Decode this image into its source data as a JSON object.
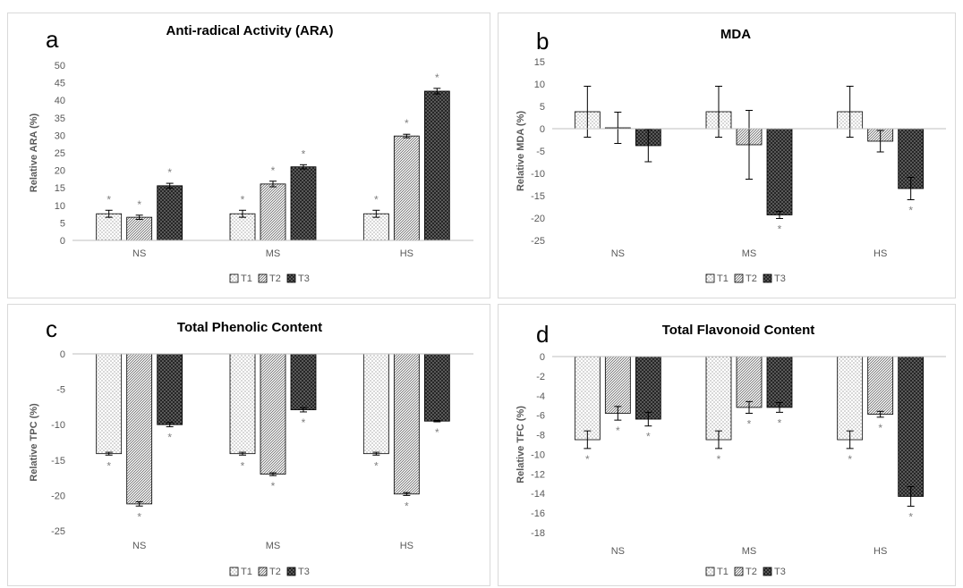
{
  "chart_data": [
    {
      "type": "bar",
      "panel_letter": "a",
      "title": "Anti-radical Activity (ARA)",
      "xlabel": "",
      "ylabel": "Relative ARA (%)",
      "categories": [
        "NS",
        "MS",
        "HS"
      ],
      "ylim": [
        0,
        50
      ],
      "yticks": [
        0,
        5,
        10,
        15,
        20,
        25,
        30,
        35,
        40,
        45,
        50
      ],
      "series": [
        {
          "name": "T1",
          "values": [
            7.6,
            7.6,
            7.6
          ],
          "errors": [
            1.0,
            1.0,
            1.0
          ],
          "sig": [
            "*",
            "*",
            "*"
          ]
        },
        {
          "name": "T2",
          "values": [
            6.6,
            16.1,
            29.8
          ],
          "errors": [
            0.6,
            0.8,
            0.5
          ],
          "sig": [
            "*",
            "*",
            "*"
          ]
        },
        {
          "name": "T3",
          "values": [
            15.6,
            21.0,
            42.6
          ],
          "errors": [
            0.7,
            0.6,
            0.8
          ],
          "sig": [
            "*",
            "*",
            "*"
          ]
        }
      ],
      "legend_position": "bottom",
      "grid": false
    },
    {
      "type": "bar",
      "panel_letter": "b",
      "title": "MDA",
      "xlabel": "",
      "ylabel": "Relative MDA (%)",
      "categories": [
        "NS",
        "MS",
        "HS"
      ],
      "ylim": [
        -25,
        15
      ],
      "yticks": [
        -25,
        -20,
        -15,
        -10,
        -5,
        0,
        5,
        10,
        15
      ],
      "series": [
        {
          "name": "T1",
          "values": [
            3.8,
            3.8,
            3.8
          ],
          "errors": [
            5.7,
            5.7,
            5.7
          ],
          "sig": [
            "",
            "",
            ""
          ]
        },
        {
          "name": "T2",
          "values": [
            0.2,
            -3.6,
            -2.8
          ],
          "errors": [
            3.5,
            7.7,
            2.4
          ],
          "sig": [
            "",
            "",
            ""
          ]
        },
        {
          "name": "T3",
          "values": [
            -3.8,
            -19.3,
            -13.4
          ],
          "errors": [
            3.6,
            0.8,
            2.5
          ],
          "sig": [
            "",
            "*",
            "*"
          ]
        }
      ],
      "legend_position": "bottom",
      "grid": false
    },
    {
      "type": "bar",
      "panel_letter": "c",
      "title": "Total Phenolic Content",
      "xlabel": "",
      "ylabel": "Relative TPC (%)",
      "categories": [
        "NS",
        "MS",
        "HS"
      ],
      "ylim": [
        -25,
        0
      ],
      "yticks": [
        -25,
        -20,
        -15,
        -10,
        -5,
        0
      ],
      "series": [
        {
          "name": "T1",
          "values": [
            -14.1,
            -14.1,
            -14.1
          ],
          "errors": [
            0.2,
            0.2,
            0.2
          ],
          "sig": [
            "*",
            "*",
            "*"
          ]
        },
        {
          "name": "T2",
          "values": [
            -21.2,
            -17.0,
            -19.8
          ],
          "errors": [
            0.3,
            0.2,
            0.2
          ],
          "sig": [
            "*",
            "*",
            "*"
          ]
        },
        {
          "name": "T3",
          "values": [
            -10.0,
            -7.9,
            -9.5
          ],
          "errors": [
            0.3,
            0.3,
            0.1
          ],
          "sig": [
            "*",
            "*",
            "*"
          ]
        }
      ],
      "legend_position": "bottom",
      "grid": false
    },
    {
      "type": "bar",
      "panel_letter": "d",
      "title": "Total Flavonoid Content",
      "xlabel": "",
      "ylabel": "Relative TFC (%)",
      "categories": [
        "NS",
        "MS",
        "HS"
      ],
      "ylim": [
        -18,
        0
      ],
      "yticks": [
        -18,
        -16,
        -14,
        -12,
        -10,
        -8,
        -6,
        -4,
        -2,
        0
      ],
      "series": [
        {
          "name": "T1",
          "values": [
            -8.5,
            -8.5,
            -8.5
          ],
          "errors": [
            0.9,
            0.9,
            0.9
          ],
          "sig": [
            "*",
            "*",
            "*"
          ]
        },
        {
          "name": "T2",
          "values": [
            -5.8,
            -5.2,
            -5.9
          ],
          "errors": [
            0.7,
            0.6,
            0.3
          ],
          "sig": [
            "*",
            "*",
            "*"
          ]
        },
        {
          "name": "T3",
          "values": [
            -6.4,
            -5.2,
            -14.3
          ],
          "errors": [
            0.7,
            0.5,
            1.0
          ],
          "sig": [
            "*",
            "*",
            "*"
          ]
        }
      ],
      "legend_position": "bottom",
      "grid": false
    }
  ],
  "colors": {
    "axis": "#bfbfbf",
    "bar_outline": "#000000",
    "text": "#595959",
    "title": "#000000",
    "asterisk": "#7f7f7f",
    "t1_fill": "#ffffff",
    "t1_dots": "#404040",
    "t2_fill": "#ffffff",
    "t2_pattern": "#7f7f7f",
    "t3_fill": "#595959",
    "t3_pattern": "#262626",
    "panel_border": "#d9d9d9"
  }
}
